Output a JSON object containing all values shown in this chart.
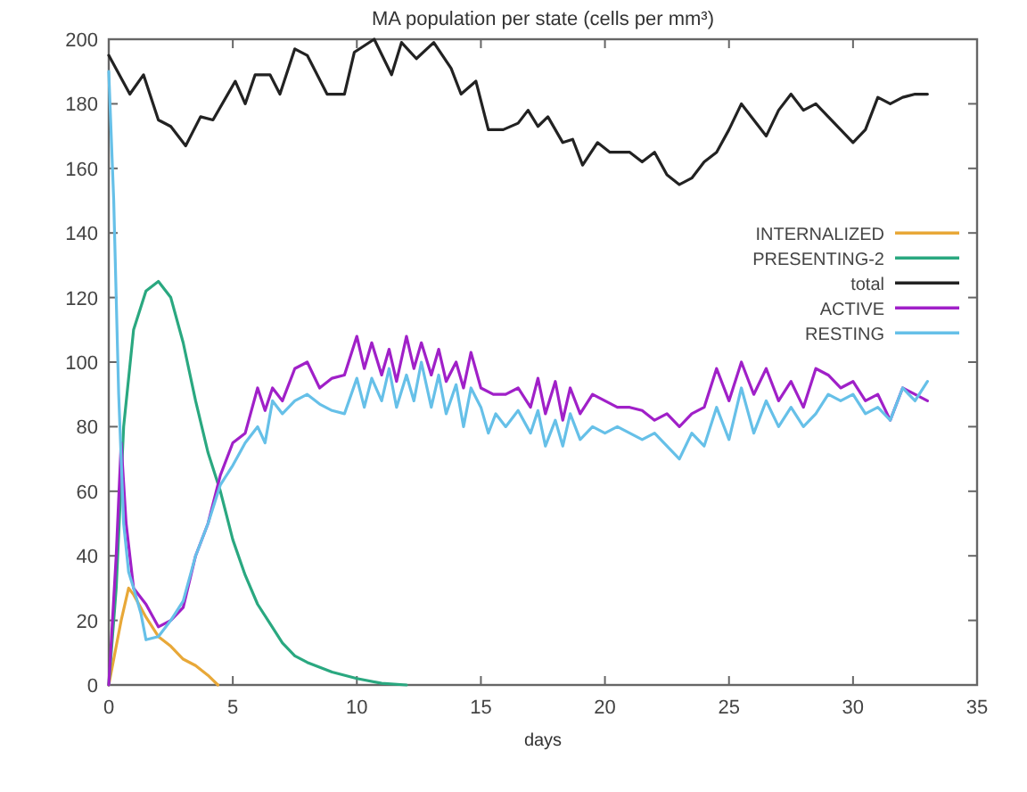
{
  "chart_data": {
    "type": "line",
    "title": "MA population per state (cells per mm³)",
    "xlabel": "days",
    "xlim": [
      0,
      35
    ],
    "xticks": [
      0,
      5,
      10,
      15,
      20,
      25,
      30,
      35
    ],
    "ylim": [
      0,
      200
    ],
    "yticks": [
      0,
      20,
      40,
      60,
      80,
      100,
      120,
      140,
      160,
      180,
      200
    ],
    "grid": false,
    "legend": "right",
    "marker": "none",
    "line_style": "solid",
    "series": [
      {
        "name": "INTERNALIZED",
        "color": "#e8a838",
        "x": [
          0,
          0.5,
          0.8,
          1,
          1.5,
          2,
          2.5,
          3,
          3.5,
          4,
          4.4
        ],
        "values": [
          0,
          20,
          30,
          28,
          21,
          15,
          12,
          8,
          6,
          3,
          0
        ]
      },
      {
        "name": "PRESENTING-2",
        "color": "#2aa880",
        "x": [
          0,
          0.3,
          0.6,
          1,
          1.5,
          2,
          2.5,
          3,
          3.5,
          4,
          4.5,
          5,
          5.5,
          6,
          6.5,
          7,
          7.5,
          8,
          9,
          10,
          11,
          12
        ],
        "values": [
          0,
          30,
          80,
          110,
          122,
          125,
          120,
          106,
          88,
          72,
          60,
          45,
          34,
          25,
          19,
          13,
          9,
          7,
          4,
          2,
          0.5,
          0
        ]
      },
      {
        "name": "total",
        "color": "#222222",
        "x": [
          0,
          0.85,
          1.4,
          2,
          2.5,
          3.1,
          3.7,
          4.2,
          5.1,
          5.5,
          5.9,
          6.5,
          6.9,
          7.5,
          8,
          8.8,
          9.5,
          9.9,
          10.7,
          11.4,
          11.8,
          12.4,
          13.1,
          13.8,
          14.2,
          14.8,
          15.3,
          15.9,
          16.5,
          16.9,
          17.3,
          17.7,
          18.3,
          18.7,
          19.1,
          19.7,
          20.2,
          21,
          21.5,
          22,
          22.5,
          23,
          23.5,
          24,
          24.5,
          25,
          25.5,
          26,
          26.5,
          27,
          27.5,
          28,
          28.5,
          29,
          29.5,
          30,
          30.5,
          31,
          31.5,
          32,
          32.5,
          33
        ],
        "values": [
          195,
          183,
          189,
          175,
          173,
          167,
          176,
          175,
          187,
          180,
          189,
          189,
          183,
          197,
          195,
          183,
          183,
          196,
          200,
          189,
          199,
          194,
          199,
          191,
          183,
          187,
          172,
          172,
          174,
          178,
          173,
          176,
          168,
          169,
          161,
          168,
          165,
          165,
          162,
          165,
          158,
          155,
          157,
          162,
          165,
          172,
          180,
          175,
          170,
          178,
          183,
          178,
          180,
          176,
          172,
          168,
          172,
          182,
          180,
          182,
          183,
          183
        ]
      },
      {
        "name": "ACTIVE",
        "color": "#a020c8",
        "x": [
          0,
          0.3,
          0.5,
          0.7,
          1,
          1.5,
          2,
          2.5,
          3,
          3.5,
          4,
          4.5,
          5,
          5.5,
          6,
          6.3,
          6.6,
          7,
          7.5,
          8,
          8.5,
          9,
          9.5,
          10,
          10.3,
          10.6,
          11,
          11.3,
          11.6,
          12,
          12.3,
          12.6,
          13,
          13.3,
          13.6,
          14,
          14.3,
          14.6,
          15,
          15.5,
          16,
          16.5,
          17,
          17.3,
          17.6,
          18,
          18.3,
          18.6,
          19,
          19.5,
          20,
          20.5,
          21,
          21.5,
          22,
          22.5,
          23,
          23.5,
          24,
          24.5,
          25,
          25.5,
          26,
          26.5,
          27,
          27.5,
          28,
          28.5,
          29,
          29.5,
          30,
          30.5,
          31,
          31.5,
          32,
          32.5,
          33
        ],
        "values": [
          0,
          40,
          75,
          50,
          30,
          25,
          18,
          20,
          24,
          40,
          50,
          65,
          75,
          78,
          92,
          85,
          92,
          88,
          98,
          100,
          92,
          95,
          96,
          108,
          98,
          106,
          96,
          104,
          94,
          108,
          98,
          106,
          96,
          104,
          94,
          100,
          92,
          103,
          92,
          90,
          90,
          92,
          86,
          95,
          84,
          94,
          82,
          92,
          84,
          90,
          88,
          86,
          86,
          85,
          82,
          84,
          80,
          84,
          86,
          98,
          88,
          100,
          90,
          98,
          88,
          94,
          86,
          98,
          96,
          92,
          94,
          88,
          90,
          82,
          92,
          90,
          88
        ]
      },
      {
        "name": "RESTING",
        "color": "#66c0e8",
        "x": [
          0,
          0.2,
          0.4,
          0.6,
          0.8,
          1,
          1.3,
          1.5,
          2,
          2.5,
          3,
          3.5,
          4,
          4.5,
          5,
          5.5,
          6,
          6.3,
          6.6,
          7,
          7.5,
          8,
          8.5,
          9,
          9.5,
          10,
          10.3,
          10.6,
          11,
          11.3,
          11.6,
          12,
          12.3,
          12.6,
          13,
          13.3,
          13.6,
          14,
          14.3,
          14.6,
          15,
          15.3,
          15.6,
          16,
          16.5,
          17,
          17.3,
          17.6,
          18,
          18.3,
          18.6,
          19,
          19.5,
          20,
          20.5,
          21,
          21.5,
          22,
          22.5,
          23,
          23.5,
          24,
          24.5,
          25,
          25.5,
          26,
          26.5,
          27,
          27.5,
          28,
          28.5,
          29,
          29.5,
          30,
          30.5,
          31,
          31.5,
          32,
          32.5,
          33
        ],
        "values": [
          190,
          150,
          90,
          50,
          35,
          30,
          22,
          14,
          15,
          20,
          26,
          40,
          50,
          62,
          68,
          75,
          80,
          75,
          88,
          84,
          88,
          90,
          87,
          85,
          84,
          95,
          86,
          95,
          88,
          98,
          86,
          96,
          88,
          100,
          86,
          96,
          84,
          93,
          80,
          92,
          86,
          78,
          84,
          80,
          85,
          78,
          85,
          74,
          82,
          74,
          84,
          76,
          80,
          78,
          80,
          78,
          76,
          78,
          74,
          70,
          78,
          74,
          86,
          76,
          92,
          78,
          88,
          80,
          86,
          80,
          84,
          90,
          88,
          90,
          84,
          86,
          82,
          92,
          88,
          94
        ]
      }
    ]
  }
}
